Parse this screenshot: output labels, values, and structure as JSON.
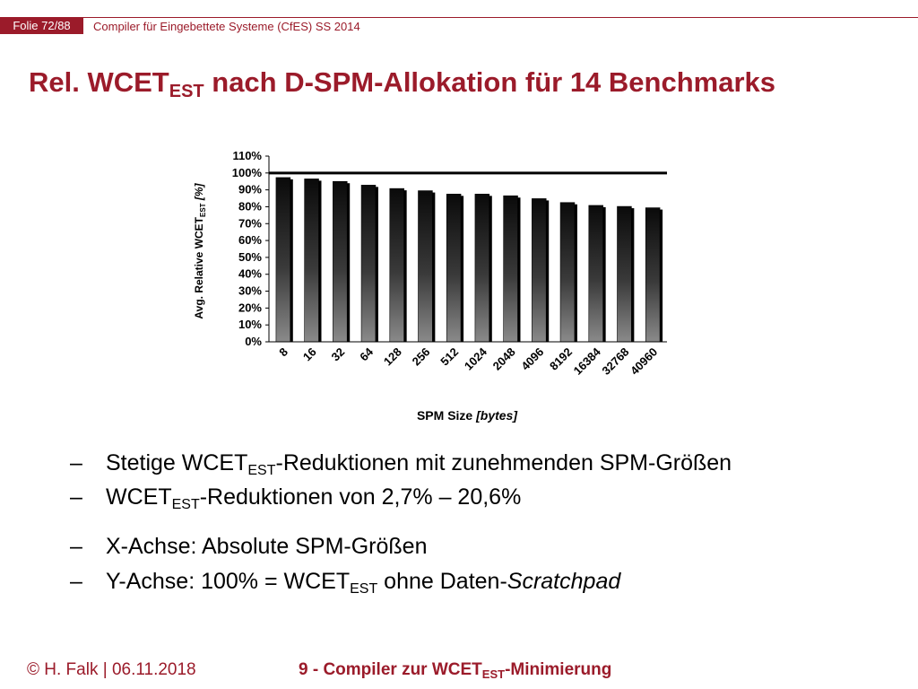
{
  "header": {
    "folio": "Folie 72/88",
    "course": "Compiler für Eingebettete Systeme (CfES) SS 2014"
  },
  "title": {
    "main": "Rel. WCET",
    "sub": "EST",
    "rest": " nach D-SPM-Allokation für 14 Benchmarks"
  },
  "chart_data": {
    "type": "bar",
    "categories": [
      "8",
      "16",
      "32",
      "64",
      "128",
      "256",
      "512",
      "1024",
      "2048",
      "4096",
      "8192",
      "16384",
      "32768",
      "40960"
    ],
    "values": [
      97.3,
      96.5,
      95.0,
      92.8,
      90.8,
      89.5,
      87.5,
      87.5,
      86.5,
      84.8,
      82.5,
      80.8,
      80.2,
      79.4
    ],
    "ylim": [
      0,
      110
    ],
    "yticks": [
      "0%",
      "10%",
      "20%",
      "30%",
      "40%",
      "50%",
      "60%",
      "70%",
      "80%",
      "90%",
      "100%",
      "110%"
    ],
    "reference_line": 100,
    "ylabel_main": "Avg. Relative WCET",
    "ylabel_sub": "EST",
    "ylabel_unit": " [%]",
    "xlabel_main": "SPM Size ",
    "xlabel_unit": "[bytes]",
    "grid": false
  },
  "bullets": [
    {
      "dash": "–",
      "pre": "Stetige WCET",
      "sub": "EST",
      "post": "-Reduktionen mit zunehmenden SPM-Größen"
    },
    {
      "dash": "–",
      "pre": "WCET",
      "sub": "EST",
      "post": "-Reduktionen von 2,7% – 20,6%"
    },
    {
      "dash": "–",
      "pre": "X-Achse: Absolute SPM-Größen",
      "sub": "",
      "post": ""
    },
    {
      "dash": "–",
      "pre": "Y-Achse: 100% = WCET",
      "sub": "EST",
      "post": " ohne Daten-",
      "italic": "Scratchpad"
    }
  ],
  "footer": {
    "left": "© H. Falk | 06.11.2018",
    "right_pre": "9 - Compiler zur WCET",
    "right_sub": "EST",
    "right_post": "-Minimierung"
  },
  "colors": {
    "accent": "#9b1b2a"
  }
}
